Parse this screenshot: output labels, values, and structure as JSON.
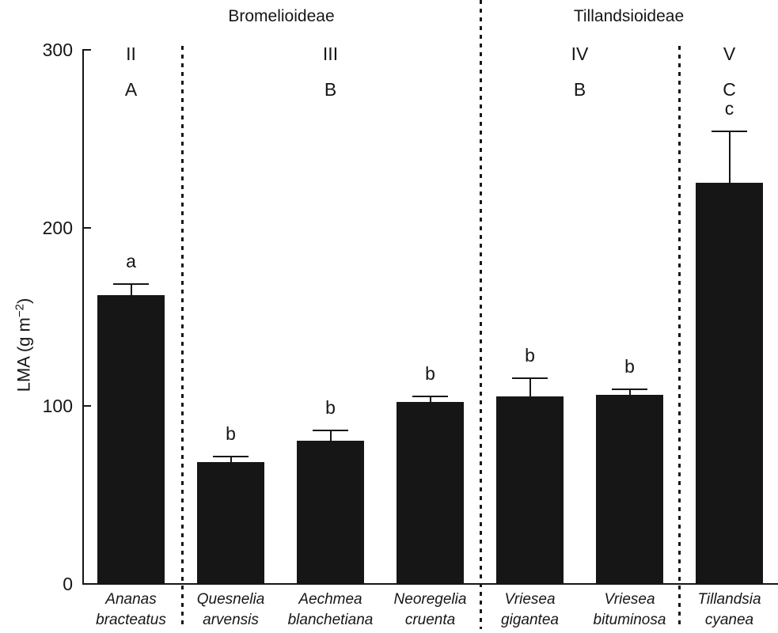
{
  "chart_data": {
    "type": "bar",
    "title": "",
    "ylabel": {
      "pre": "LMA (g m",
      "sup": "−2",
      "post": ")"
    },
    "ylim": [
      0,
      300
    ],
    "yticks": [
      0,
      100,
      200,
      300
    ],
    "grid": false,
    "bar_color": "#161616",
    "families": [
      {
        "label": "Bromelioideae"
      },
      {
        "label": "Tillandsioideae"
      }
    ],
    "clades": [
      {
        "numeral": "II",
        "letter": "A",
        "bars": [
          0
        ]
      },
      {
        "numeral": "III",
        "letter": "B",
        "bars": [
          1,
          2,
          3
        ]
      },
      {
        "numeral": "IV",
        "letter": "B",
        "bars": [
          4,
          5
        ]
      },
      {
        "numeral": "V",
        "letter": "C",
        "bars": [
          6
        ]
      }
    ],
    "bars": [
      {
        "species": [
          "Ananas",
          "bracteatus"
        ],
        "value": 162,
        "error_top": 168,
        "sig": "a"
      },
      {
        "species": [
          "Quesnelia",
          "arvensis"
        ],
        "value": 68,
        "error_top": 71,
        "sig": "b"
      },
      {
        "species": [
          "Aechmea",
          "blanchetiana"
        ],
        "value": 80,
        "error_top": 86,
        "sig": "b"
      },
      {
        "species": [
          "Neoregelia",
          "cruenta"
        ],
        "value": 102,
        "error_top": 105,
        "sig": "b"
      },
      {
        "species": [
          "Vriesea",
          "gigantea"
        ],
        "value": 105,
        "error_top": 115,
        "sig": "b"
      },
      {
        "species": [
          "Vriesea",
          "bituminosa"
        ],
        "value": 106,
        "error_top": 109,
        "sig": "b"
      },
      {
        "species": [
          "Tillandsia",
          "cyanea"
        ],
        "value": 225,
        "error_top": 254,
        "sig": "c"
      }
    ]
  }
}
